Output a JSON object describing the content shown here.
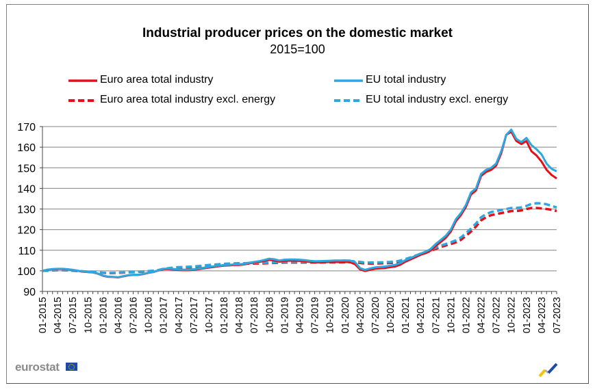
{
  "chart_data": {
    "type": "line",
    "title": "Industrial producer prices on the domestic market",
    "subtitle": "2015=100",
    "xlabel": "",
    "ylabel": "",
    "ylim": [
      90,
      170
    ],
    "yticks": [
      90,
      100,
      110,
      120,
      130,
      140,
      150,
      160,
      170
    ],
    "grid": true,
    "legend_position": "top",
    "x_tick_labels": [
      "01-2015",
      "04-2015",
      "07-2015",
      "10-2015",
      "01-2016",
      "04-2016",
      "07-2016",
      "10-2016",
      "01-2017",
      "04-2017",
      "07-2017",
      "10-2017",
      "01-2018",
      "04-2018",
      "07-2018",
      "10-2018",
      "01-2019",
      "04-2019",
      "07-2019",
      "10-2019",
      "01-2020",
      "04-2020",
      "07-2020",
      "10-2020",
      "01-2021",
      "04-2021",
      "07-2021",
      "10-2021",
      "01-2022",
      "04-2022",
      "07-2022",
      "10-2022",
      "01-2023",
      "04-2023",
      "07-2023"
    ],
    "x_start": "01-2015",
    "x_end": "07-2023",
    "frequency": "monthly",
    "series": [
      {
        "name": "Euro area total industry",
        "color": "#e3101a",
        "style": "solid",
        "values": [
          100.0,
          100.5,
          100.8,
          100.9,
          100.9,
          100.7,
          100.4,
          100.0,
          99.6,
          99.4,
          99.2,
          98.6,
          97.6,
          97.1,
          97.0,
          96.8,
          97.3,
          97.8,
          98.0,
          98.0,
          98.4,
          99.0,
          99.4,
          100.2,
          100.8,
          100.8,
          100.6,
          100.4,
          100.3,
          100.3,
          100.5,
          100.8,
          101.2,
          101.6,
          101.9,
          102.2,
          102.5,
          102.6,
          102.8,
          102.8,
          103.1,
          103.6,
          104.0,
          104.3,
          104.8,
          105.3,
          105.0,
          104.4,
          104.8,
          104.9,
          104.9,
          104.8,
          104.6,
          104.3,
          104.1,
          104.1,
          104.2,
          104.3,
          104.3,
          104.2,
          104.3,
          104.2,
          103.2,
          100.7,
          99.9,
          100.5,
          101.0,
          101.2,
          101.4,
          101.8,
          102.1,
          103.0,
          104.4,
          105.5,
          106.6,
          107.8,
          108.6,
          109.8,
          112.0,
          114.0,
          116.0,
          119.0,
          124.0,
          127.0,
          131.0,
          137.0,
          139.0,
          146.0,
          148.0,
          149.0,
          151.0,
          157.0,
          166.0,
          167.5,
          163.0,
          161.5,
          163.0,
          158.0,
          156.0,
          153.0,
          149.0,
          146.5,
          144.8
        ]
      },
      {
        "name": "EU total industry",
        "color": "#2ca7e0",
        "style": "solid",
        "values": [
          100.0,
          100.6,
          100.9,
          101.0,
          101.0,
          100.8,
          100.5,
          100.1,
          99.7,
          99.5,
          99.3,
          98.7,
          97.7,
          97.2,
          97.1,
          96.9,
          97.4,
          97.9,
          98.1,
          98.1,
          98.5,
          99.1,
          99.5,
          100.3,
          101.0,
          101.1,
          100.9,
          100.7,
          100.6,
          100.6,
          100.8,
          101.1,
          101.5,
          101.9,
          102.2,
          102.5,
          102.8,
          102.9,
          103.1,
          103.1,
          103.4,
          103.9,
          104.3,
          104.7,
          105.3,
          105.9,
          105.6,
          105.0,
          105.4,
          105.5,
          105.5,
          105.4,
          105.2,
          104.9,
          104.7,
          104.7,
          104.8,
          104.9,
          105.0,
          105.0,
          105.1,
          105.0,
          104.2,
          101.3,
          100.5,
          101.2,
          101.7,
          101.9,
          102.1,
          102.5,
          102.9,
          103.8,
          105.2,
          106.2,
          107.3,
          108.4,
          109.3,
          110.6,
          113.0,
          115.0,
          117.0,
          120.0,
          125.0,
          128.0,
          132.0,
          138.0,
          140.0,
          147.0,
          149.0,
          150.0,
          152.0,
          158.0,
          166.0,
          168.5,
          164.0,
          162.5,
          164.5,
          161.0,
          159.0,
          156.5,
          152.0,
          149.5,
          148.3
        ]
      },
      {
        "name": "Euro area total industry excl. energy",
        "color": "#e3101a",
        "style": "dashed",
        "values": [
          100.0,
          100.1,
          100.2,
          100.3,
          100.3,
          100.2,
          100.1,
          99.9,
          99.7,
          99.5,
          99.4,
          99.2,
          99.0,
          98.9,
          98.9,
          99.0,
          99.1,
          99.3,
          99.4,
          99.5,
          99.6,
          99.8,
          100.0,
          100.3,
          100.8,
          101.1,
          101.4,
          101.5,
          101.6,
          101.7,
          101.8,
          102.0,
          102.3,
          102.5,
          102.7,
          102.9,
          103.1,
          103.2,
          103.3,
          103.4,
          103.4,
          103.5,
          103.5,
          103.5,
          103.6,
          103.7,
          103.8,
          103.9,
          104.0,
          104.0,
          104.0,
          104.0,
          104.0,
          104.0,
          104.0,
          104.0,
          104.1,
          104.1,
          104.1,
          104.1,
          104.2,
          104.2,
          104.1,
          103.8,
          103.5,
          103.5,
          103.5,
          103.6,
          103.7,
          103.8,
          104.0,
          104.5,
          105.2,
          106.0,
          106.9,
          107.8,
          108.7,
          109.7,
          110.6,
          111.5,
          112.3,
          113.0,
          113.8,
          115.0,
          117.0,
          119.0,
          121.5,
          124.5,
          126.0,
          127.0,
          127.5,
          128.0,
          128.5,
          129.0,
          129.0,
          129.3,
          130.0,
          130.5,
          130.5,
          130.3,
          130.0,
          129.6,
          129.0
        ]
      },
      {
        "name": "EU total industry excl. energy",
        "color": "#2ca7e0",
        "style": "dashed",
        "values": [
          100.0,
          100.2,
          100.3,
          100.4,
          100.4,
          100.3,
          100.2,
          100.0,
          99.8,
          99.6,
          99.5,
          99.3,
          99.1,
          99.0,
          99.0,
          99.1,
          99.2,
          99.4,
          99.5,
          99.6,
          99.7,
          99.9,
          100.1,
          100.4,
          101.0,
          101.3,
          101.6,
          101.8,
          101.9,
          102.0,
          102.1,
          102.3,
          102.6,
          102.8,
          103.0,
          103.2,
          103.4,
          103.5,
          103.6,
          103.7,
          103.7,
          103.8,
          103.8,
          103.8,
          103.9,
          104.0,
          104.1,
          104.2,
          104.3,
          104.3,
          104.3,
          104.3,
          104.3,
          104.3,
          104.3,
          104.4,
          104.4,
          104.5,
          104.5,
          104.6,
          104.7,
          104.7,
          104.6,
          104.3,
          104.0,
          104.0,
          104.0,
          104.1,
          104.2,
          104.3,
          104.5,
          105.0,
          105.7,
          106.5,
          107.4,
          108.3,
          109.2,
          110.3,
          111.2,
          112.2,
          113.0,
          113.8,
          114.8,
          116.2,
          118.2,
          120.5,
          123.0,
          126.0,
          127.5,
          128.5,
          129.0,
          129.5,
          130.0,
          130.5,
          130.5,
          130.8,
          131.5,
          132.5,
          132.8,
          132.8,
          132.3,
          131.5,
          130.8
        ]
      }
    ]
  },
  "branding": {
    "logo_text": "eurostat"
  }
}
